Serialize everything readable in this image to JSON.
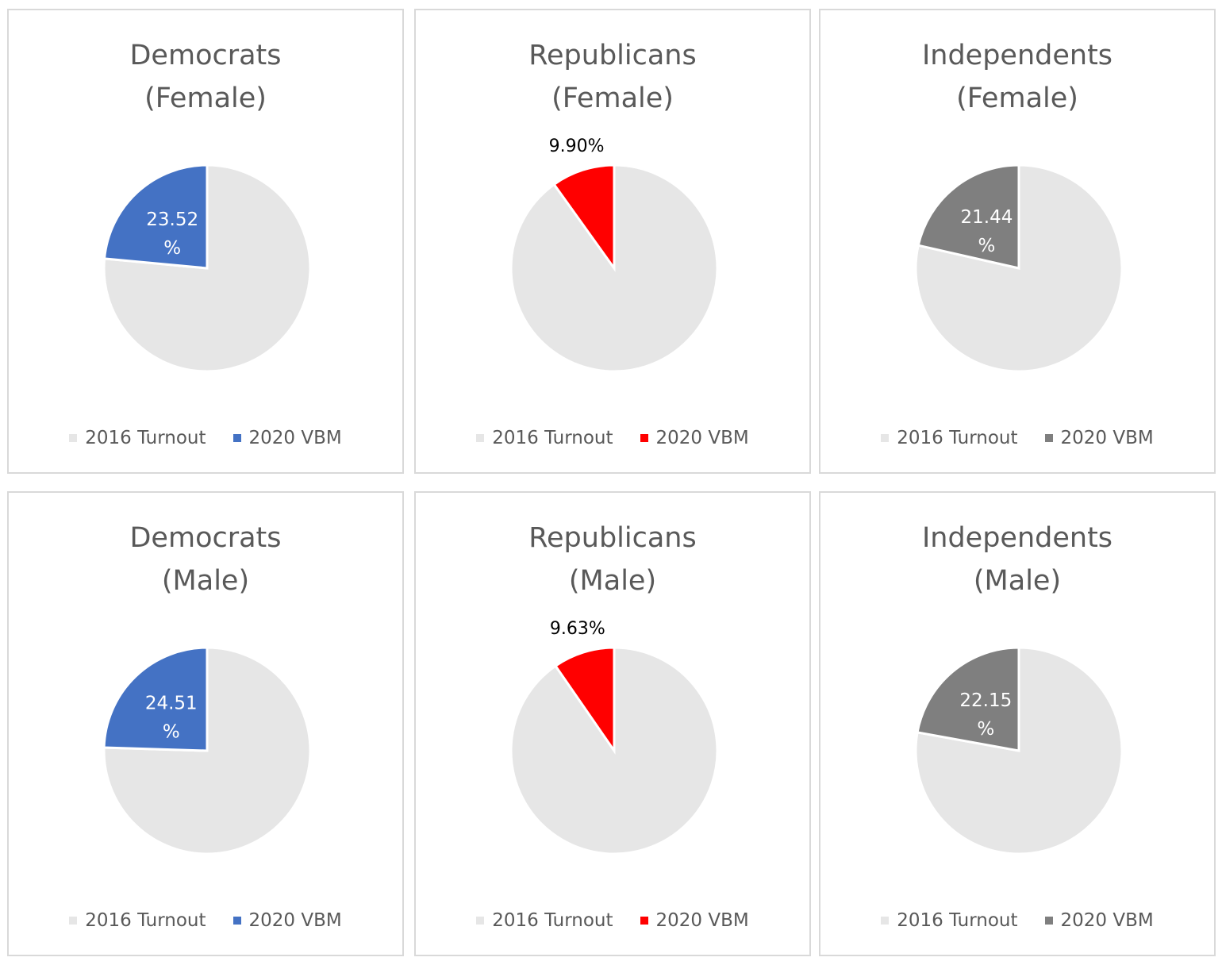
{
  "colors": {
    "background_slice": "#e6e6e6",
    "slice_edge": "#ffffff",
    "democrats": "#4472c4",
    "republicans": "#ff0000",
    "independents": "#7f7f7f",
    "label_light": "#ffffff",
    "label_dark": "#000000"
  },
  "legend": {
    "series_1": "2016 Turnout",
    "series_2": "2020 VBM"
  },
  "chart_data": [
    {
      "type": "pie",
      "title_line1": "Democrats",
      "title_line2": "(Female)",
      "categories": [
        "2016 Turnout",
        "2020 VBM"
      ],
      "values": [
        76.48,
        23.52
      ],
      "highlight_label_line1": "23.52",
      "highlight_label_line2": "%",
      "label_placement": "inside",
      "highlight_color": "#4472c4",
      "legend_placement": "bottom"
    },
    {
      "type": "pie",
      "title_line1": "Republicans",
      "title_line2": "(Female)",
      "categories": [
        "2016 Turnout",
        "2020 VBM"
      ],
      "values": [
        90.1,
        9.9
      ],
      "highlight_label_line1": "9.90%",
      "highlight_label_line2": "",
      "label_placement": "outside",
      "highlight_color": "#ff0000",
      "legend_placement": "bottom"
    },
    {
      "type": "pie",
      "title_line1": "Independents",
      "title_line2": "(Female)",
      "categories": [
        "2016 Turnout",
        "2020 VBM"
      ],
      "values": [
        78.56,
        21.44
      ],
      "highlight_label_line1": "21.44",
      "highlight_label_line2": "%",
      "label_placement": "inside",
      "highlight_color": "#7f7f7f",
      "legend_placement": "bottom"
    },
    {
      "type": "pie",
      "title_line1": "Democrats",
      "title_line2": "(Male)",
      "categories": [
        "2016 Turnout",
        "2020 VBM"
      ],
      "values": [
        75.49,
        24.51
      ],
      "highlight_label_line1": "24.51",
      "highlight_label_line2": "%",
      "label_placement": "inside",
      "highlight_color": "#4472c4",
      "legend_placement": "bottom"
    },
    {
      "type": "pie",
      "title_line1": "Republicans",
      "title_line2": "(Male)",
      "categories": [
        "2016 Turnout",
        "2020 VBM"
      ],
      "values": [
        90.37,
        9.63
      ],
      "highlight_label_line1": "9.63%",
      "highlight_label_line2": "",
      "label_placement": "outside",
      "highlight_color": "#ff0000",
      "legend_placement": "bottom"
    },
    {
      "type": "pie",
      "title_line1": "Independents",
      "title_line2": "(Male)",
      "categories": [
        "2016 Turnout",
        "2020 VBM"
      ],
      "values": [
        77.85,
        22.15
      ],
      "highlight_label_line1": "22.15",
      "highlight_label_line2": "%",
      "label_placement": "inside",
      "highlight_color": "#7f7f7f",
      "legend_placement": "bottom"
    }
  ]
}
